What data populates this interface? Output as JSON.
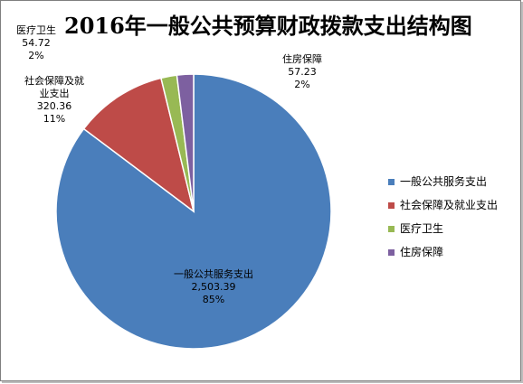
{
  "chart_data": {
    "type": "pie",
    "title": "2016年一般公共预算财政拨款支出结构图",
    "slices": [
      {
        "label": "一般公共服务支出",
        "value_text": "2,503.39",
        "value": 2503.39,
        "percent": "85%",
        "color": "#4a7ebb"
      },
      {
        "label": "社会保障及就业支出",
        "value_text": "320.36",
        "value": 320.36,
        "percent": "11%",
        "color": "#be4b48"
      },
      {
        "label": "医疗卫生",
        "value_text": "54.72",
        "value": 54.72,
        "percent": "2%",
        "color": "#98b954"
      },
      {
        "label": "住房保障",
        "value_text": "57.23",
        "value": 57.23,
        "percent": "2%",
        "color": "#7d60a0"
      }
    ],
    "legend_position": "right",
    "start_angle": "12 o'clock",
    "direction": "clockwise"
  }
}
